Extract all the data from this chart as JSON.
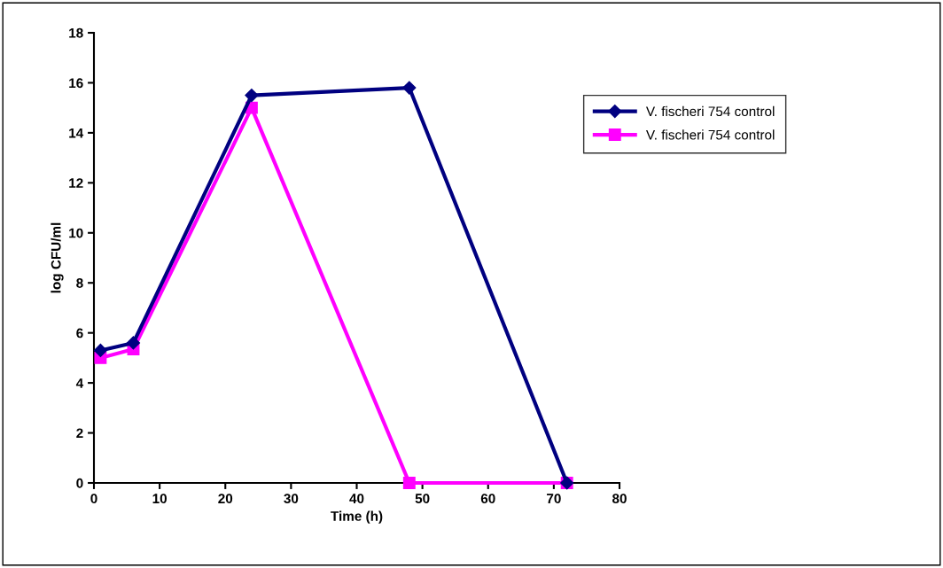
{
  "chart_data": {
    "type": "line",
    "xlabel": "Time (h)",
    "ylabel": "log CFU/ml",
    "xlim": [
      0,
      80
    ],
    "xticks": [
      0,
      10,
      20,
      30,
      40,
      50,
      60,
      70,
      80
    ],
    "ylim": [
      0,
      18
    ],
    "yticks": [
      0,
      2,
      4,
      6,
      8,
      10,
      12,
      14,
      16,
      18
    ],
    "grid": false,
    "legend": "top right",
    "line_style": "solid",
    "series": [
      {
        "name": "V. fischeri 754 control",
        "color": "#000080",
        "marker": "diamond",
        "x": [
          1,
          6,
          24,
          48,
          72
        ],
        "values": [
          5.3,
          5.6,
          15.5,
          15.8,
          0
        ]
      },
      {
        "name": "V. fischeri 754 control",
        "color": "#ff00ff",
        "marker": "square",
        "x": [
          1,
          6,
          24,
          48,
          72
        ],
        "values": [
          5.0,
          5.35,
          15.0,
          0,
          0
        ]
      }
    ]
  }
}
